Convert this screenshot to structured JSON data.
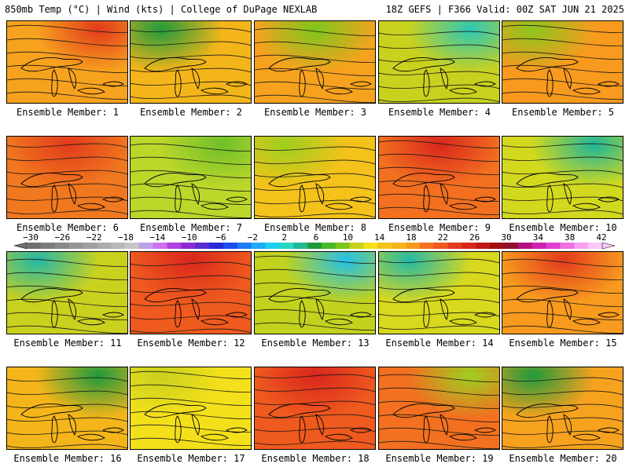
{
  "header": {
    "left": "850mb Temp (°C) | Wind (kts) | College of DuPage NEXLAB",
    "right": "18Z GEFS | F366 Valid: 00Z SAT JUN 21 2025"
  },
  "caption_prefix": "Ensemble Member:",
  "members": [
    {
      "number": "1",
      "dominant_color": "#f7a21e",
      "accent_color": "#e23a1c"
    },
    {
      "number": "2",
      "dominant_color": "#f4b51a",
      "accent_color": "#1f9a3c"
    },
    {
      "number": "3",
      "dominant_color": "#f7a21e",
      "accent_color": "#7cc61d"
    },
    {
      "number": "4",
      "dominant_color": "#c9d11f",
      "accent_color": "#2bc7b7"
    },
    {
      "number": "5",
      "dominant_color": "#f79a1e",
      "accent_color": "#8cc61d"
    },
    {
      "number": "6",
      "dominant_color": "#f0781e",
      "accent_color": "#e23a1c"
    },
    {
      "number": "7",
      "dominant_color": "#bcd62a",
      "accent_color": "#6fc02a"
    },
    {
      "number": "8",
      "dominant_color": "#f4c21a",
      "accent_color": "#9dcf1f"
    },
    {
      "number": "9",
      "dominant_color": "#f27020",
      "accent_color": "#d9261c"
    },
    {
      "number": "10",
      "dominant_color": "#d2d81e",
      "accent_color": "#1fb59a"
    },
    {
      "number": "11",
      "dominant_color": "#c9d11f",
      "accent_color": "#23b8a8"
    },
    {
      "number": "12",
      "dominant_color": "#ef5a1e",
      "accent_color": "#d9261c"
    },
    {
      "number": "13",
      "dominant_color": "#c2d21e",
      "accent_color": "#1fc0e8"
    },
    {
      "number": "14",
      "dominant_color": "#d8d81e",
      "accent_color": "#23b8a8"
    },
    {
      "number": "15",
      "dominant_color": "#f79a1e",
      "accent_color": "#e23a1c"
    },
    {
      "number": "16",
      "dominant_color": "#f4b51a",
      "accent_color": "#1f9a3c"
    },
    {
      "number": "17",
      "dominant_color": "#f4e01a",
      "accent_color": "#c9d11f"
    },
    {
      "number": "18",
      "dominant_color": "#ef5a1e",
      "accent_color": "#d9261c"
    },
    {
      "number": "19",
      "dominant_color": "#f27020",
      "accent_color": "#9dcf1f"
    },
    {
      "number": "20",
      "dominant_color": "#f7a21e",
      "accent_color": "#1f9a3c"
    }
  ],
  "colorbar": {
    "labels": [
      "−30",
      "−26",
      "−22",
      "−18",
      "−14",
      "−10",
      "−6",
      "−2",
      "2",
      "6",
      "10",
      "14",
      "18",
      "22",
      "26",
      "30",
      "34",
      "38",
      "42"
    ],
    "colors": [
      "#707070",
      "#7c7c7c",
      "#888888",
      "#949494",
      "#a0a0a0",
      "#acacac",
      "#b8b8b8",
      "#c6c6c6",
      "#c0a0e8",
      "#d070f0",
      "#b040e0",
      "#8a2bd0",
      "#5a2bd0",
      "#2a2ad8",
      "#1c4cf0",
      "#1c7cf8",
      "#20a8f8",
      "#20d0f0",
      "#28d8c0",
      "#20b890",
      "#1f9a3c",
      "#4ab82a",
      "#7cc61d",
      "#c9d11f",
      "#f4e01a",
      "#f4c21a",
      "#f4b51a",
      "#f79a1e",
      "#f27020",
      "#ef5a1e",
      "#e23a1c",
      "#d9261c",
      "#c01818",
      "#a01010",
      "#901030",
      "#b01080",
      "#d020b0",
      "#e040d0",
      "#f070e0",
      "#f8a0f0",
      "#f8c8f8"
    ]
  }
}
